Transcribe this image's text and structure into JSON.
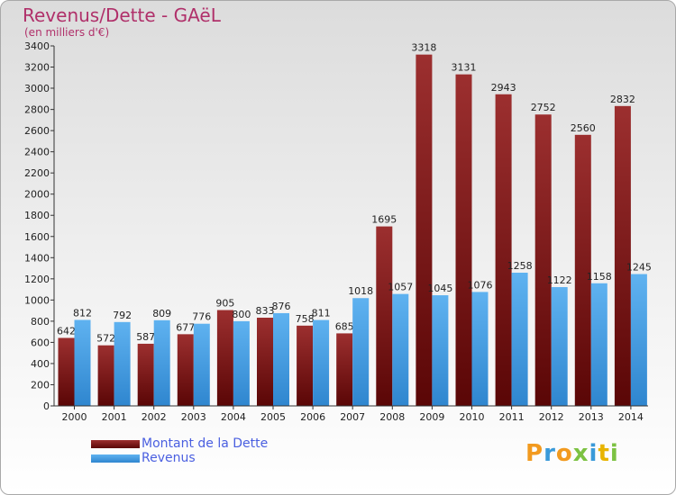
{
  "title": "Revenus/Dette - GAëL",
  "subtitle": "(en milliers d'€)",
  "logo_letters": [
    {
      "ch": "P",
      "color": "#f29a1f"
    },
    {
      "ch": "r",
      "color": "#3a9ad9"
    },
    {
      "ch": "o",
      "color": "#f29a1f"
    },
    {
      "ch": "x",
      "color": "#7cc242"
    },
    {
      "ch": "i",
      "color": "#3a9ad9"
    },
    {
      "ch": "t",
      "color": "#e8b400"
    },
    {
      "ch": "i",
      "color": "#7cc242"
    }
  ],
  "chart_data": {
    "type": "bar",
    "title": "Revenus/Dette - GAëL",
    "subtitle": "(en milliers d'€)",
    "xlabel": "",
    "ylabel": "",
    "categories": [
      "2000",
      "2001",
      "2002",
      "2003",
      "2004",
      "2005",
      "2006",
      "2007",
      "2008",
      "2009",
      "2010",
      "2011",
      "2012",
      "2013",
      "2014"
    ],
    "series": [
      {
        "name": "Montant de la Dette",
        "color": "#8b1a1a",
        "values": [
          642,
          572,
          587,
          677,
          905,
          833,
          758,
          685,
          1695,
          3318,
          3131,
          2943,
          2752,
          2560,
          2832
        ]
      },
      {
        "name": "Revenus",
        "color": "#3d9be0",
        "values": [
          812,
          792,
          809,
          776,
          800,
          876,
          811,
          1018,
          1057,
          1045,
          1076,
          1258,
          1122,
          1158,
          1245
        ]
      }
    ],
    "ylim": [
      0,
      3400
    ],
    "yticks": [
      0,
      200,
      400,
      600,
      800,
      1000,
      1200,
      1400,
      1600,
      1800,
      2000,
      2200,
      2400,
      2600,
      2800,
      3000,
      3200,
      3400
    ],
    "grid": false,
    "legend_position": "bottom-left"
  }
}
